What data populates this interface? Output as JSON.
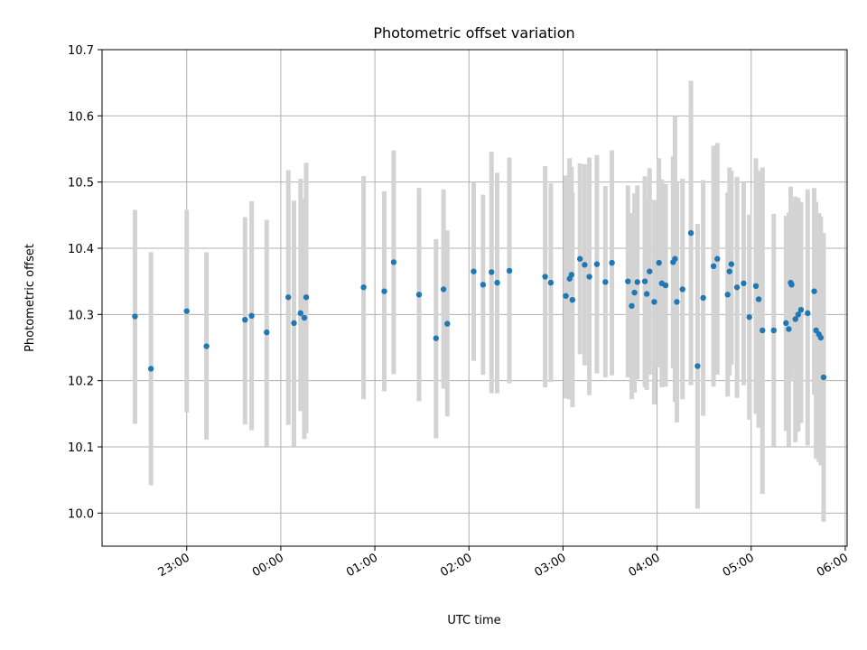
{
  "chart_data": {
    "type": "scatter",
    "title": "Photometric offset variation",
    "xlabel": "UTC time",
    "ylabel": "Photometric offset",
    "x_unit": "hours UTC (values past 24 are the following day)",
    "xlim": [
      22.1,
      30.02
    ],
    "ylim": [
      9.95,
      10.7
    ],
    "x_ticks": [
      {
        "value": 23,
        "label": "23:00"
      },
      {
        "value": 24,
        "label": "00:00"
      },
      {
        "value": 25,
        "label": "01:00"
      },
      {
        "value": 26,
        "label": "02:00"
      },
      {
        "value": 27,
        "label": "03:00"
      },
      {
        "value": 28,
        "label": "04:00"
      },
      {
        "value": 29,
        "label": "05:00"
      },
      {
        "value": 30,
        "label": "06:00"
      }
    ],
    "y_ticks": [
      {
        "value": 10.0,
        "label": "10.0"
      },
      {
        "value": 10.1,
        "label": "10.1"
      },
      {
        "value": 10.2,
        "label": "10.2"
      },
      {
        "value": 10.3,
        "label": "10.3"
      },
      {
        "value": 10.4,
        "label": "10.4"
      },
      {
        "value": 10.5,
        "label": "10.5"
      },
      {
        "value": 10.6,
        "label": "10.6"
      },
      {
        "value": 10.7,
        "label": "10.7"
      }
    ],
    "grid": true,
    "colors": {
      "points": "#1f77b4",
      "error_bars": "#d3d3d3"
    },
    "points": [
      {
        "x": 22.45,
        "y": 10.297,
        "low": 10.135,
        "high": 10.458
      },
      {
        "x": 22.62,
        "y": 10.218,
        "low": 10.042,
        "high": 10.394
      },
      {
        "x": 23.0,
        "y": 10.305,
        "low": 10.152,
        "high": 10.458
      },
      {
        "x": 23.21,
        "y": 10.252,
        "low": 10.111,
        "high": 10.394
      },
      {
        "x": 23.62,
        "y": 10.292,
        "low": 10.134,
        "high": 10.447
      },
      {
        "x": 23.69,
        "y": 10.298,
        "low": 10.125,
        "high": 10.471
      },
      {
        "x": 23.85,
        "y": 10.273,
        "low": 10.101,
        "high": 10.443
      },
      {
        "x": 24.08,
        "y": 10.326,
        "low": 10.133,
        "high": 10.518
      },
      {
        "x": 24.14,
        "y": 10.287,
        "low": 10.101,
        "high": 10.472
      },
      {
        "x": 24.21,
        "y": 10.302,
        "low": 10.154,
        "high": 10.505
      },
      {
        "x": 24.25,
        "y": 10.295,
        "low": 10.112,
        "high": 10.475
      },
      {
        "x": 24.27,
        "y": 10.326,
        "low": 10.121,
        "high": 10.529
      },
      {
        "x": 24.88,
        "y": 10.341,
        "low": 10.172,
        "high": 10.509
      },
      {
        "x": 25.1,
        "y": 10.335,
        "low": 10.184,
        "high": 10.486
      },
      {
        "x": 25.2,
        "y": 10.379,
        "low": 10.21,
        "high": 10.548
      },
      {
        "x": 25.47,
        "y": 10.33,
        "low": 10.169,
        "high": 10.491
      },
      {
        "x": 25.65,
        "y": 10.264,
        "low": 10.113,
        "high": 10.414
      },
      {
        "x": 25.73,
        "y": 10.338,
        "low": 10.188,
        "high": 10.489
      },
      {
        "x": 25.77,
        "y": 10.286,
        "low": 10.146,
        "high": 10.427
      },
      {
        "x": 26.05,
        "y": 10.365,
        "low": 10.23,
        "high": 10.5
      },
      {
        "x": 26.15,
        "y": 10.345,
        "low": 10.209,
        "high": 10.481
      },
      {
        "x": 26.24,
        "y": 10.364,
        "low": 10.181,
        "high": 10.546
      },
      {
        "x": 26.3,
        "y": 10.348,
        "low": 10.181,
        "high": 10.514
      },
      {
        "x": 26.43,
        "y": 10.366,
        "low": 10.196,
        "high": 10.537
      },
      {
        "x": 26.81,
        "y": 10.357,
        "low": 10.19,
        "high": 10.524
      },
      {
        "x": 26.87,
        "y": 10.348,
        "low": 10.198,
        "high": 10.498
      },
      {
        "x": 27.03,
        "y": 10.328,
        "low": 10.173,
        "high": 10.51
      },
      {
        "x": 27.07,
        "y": 10.354,
        "low": 10.172,
        "high": 10.536
      },
      {
        "x": 27.09,
        "y": 10.36,
        "low": 10.198,
        "high": 10.523
      },
      {
        "x": 27.1,
        "y": 10.322,
        "low": 10.16,
        "high": 10.484
      },
      {
        "x": 27.18,
        "y": 10.384,
        "low": 10.24,
        "high": 10.528
      },
      {
        "x": 27.23,
        "y": 10.375,
        "low": 10.223,
        "high": 10.527
      },
      {
        "x": 27.28,
        "y": 10.357,
        "low": 10.178,
        "high": 10.537
      },
      {
        "x": 27.36,
        "y": 10.376,
        "low": 10.211,
        "high": 10.541
      },
      {
        "x": 27.45,
        "y": 10.349,
        "low": 10.205,
        "high": 10.494
      },
      {
        "x": 27.52,
        "y": 10.378,
        "low": 10.208,
        "high": 10.548
      },
      {
        "x": 27.69,
        "y": 10.35,
        "low": 10.205,
        "high": 10.495
      },
      {
        "x": 27.73,
        "y": 10.313,
        "low": 10.172,
        "high": 10.453
      },
      {
        "x": 27.76,
        "y": 10.333,
        "low": 10.182,
        "high": 10.483
      },
      {
        "x": 27.79,
        "y": 10.349,
        "low": 10.202,
        "high": 10.495
      },
      {
        "x": 27.87,
        "y": 10.35,
        "low": 10.19,
        "high": 10.509
      },
      {
        "x": 27.89,
        "y": 10.331,
        "low": 10.186,
        "high": 10.476
      },
      {
        "x": 27.92,
        "y": 10.365,
        "low": 10.209,
        "high": 10.521
      },
      {
        "x": 27.97,
        "y": 10.319,
        "low": 10.164,
        "high": 10.473
      },
      {
        "x": 28.02,
        "y": 10.378,
        "low": 10.22,
        "high": 10.536
      },
      {
        "x": 28.05,
        "y": 10.347,
        "low": 10.19,
        "high": 10.504
      },
      {
        "x": 28.09,
        "y": 10.344,
        "low": 10.191,
        "high": 10.497
      },
      {
        "x": 28.17,
        "y": 10.379,
        "low": 10.219,
        "high": 10.539
      },
      {
        "x": 28.19,
        "y": 10.384,
        "low": 10.168,
        "high": 10.6
      },
      {
        "x": 28.21,
        "y": 10.319,
        "low": 10.137,
        "high": 10.5
      },
      {
        "x": 28.27,
        "y": 10.338,
        "low": 10.172,
        "high": 10.505
      },
      {
        "x": 28.36,
        "y": 10.423,
        "low": 10.193,
        "high": 10.653
      },
      {
        "x": 28.43,
        "y": 10.222,
        "low": 10.007,
        "high": 10.437
      },
      {
        "x": 28.49,
        "y": 10.325,
        "low": 10.147,
        "high": 10.503
      },
      {
        "x": 28.6,
        "y": 10.373,
        "low": 10.191,
        "high": 10.555
      },
      {
        "x": 28.64,
        "y": 10.384,
        "low": 10.209,
        "high": 10.559
      },
      {
        "x": 28.75,
        "y": 10.33,
        "low": 10.176,
        "high": 10.484
      },
      {
        "x": 28.77,
        "y": 10.365,
        "low": 10.208,
        "high": 10.522
      },
      {
        "x": 28.79,
        "y": 10.376,
        "low": 10.224,
        "high": 10.517
      },
      {
        "x": 28.85,
        "y": 10.341,
        "low": 10.174,
        "high": 10.508
      },
      {
        "x": 28.92,
        "y": 10.347,
        "low": 10.193,
        "high": 10.5
      },
      {
        "x": 28.98,
        "y": 10.296,
        "low": 10.141,
        "high": 10.451
      },
      {
        "x": 29.05,
        "y": 10.343,
        "low": 10.15,
        "high": 10.536
      },
      {
        "x": 29.08,
        "y": 10.323,
        "low": 10.129,
        "high": 10.517
      },
      {
        "x": 29.12,
        "y": 10.276,
        "low": 10.029,
        "high": 10.522
      },
      {
        "x": 29.24,
        "y": 10.276,
        "low": 10.101,
        "high": 10.452
      },
      {
        "x": 29.37,
        "y": 10.287,
        "low": 10.124,
        "high": 10.449
      },
      {
        "x": 29.4,
        "y": 10.278,
        "low": 10.101,
        "high": 10.454
      },
      {
        "x": 29.42,
        "y": 10.348,
        "low": 10.202,
        "high": 10.493
      },
      {
        "x": 29.43,
        "y": 10.345,
        "low": 10.222,
        "high": 10.468
      },
      {
        "x": 29.47,
        "y": 10.293,
        "low": 10.107,
        "high": 10.478
      },
      {
        "x": 29.5,
        "y": 10.3,
        "low": 10.123,
        "high": 10.476
      },
      {
        "x": 29.53,
        "y": 10.307,
        "low": 10.136,
        "high": 10.47
      },
      {
        "x": 29.6,
        "y": 10.302,
        "low": 10.102,
        "high": 10.489
      },
      {
        "x": 29.67,
        "y": 10.335,
        "low": 10.179,
        "high": 10.491
      },
      {
        "x": 29.69,
        "y": 10.276,
        "low": 10.082,
        "high": 10.47
      },
      {
        "x": 29.72,
        "y": 10.27,
        "low": 10.077,
        "high": 10.453
      },
      {
        "x": 29.74,
        "y": 10.265,
        "low": 10.072,
        "high": 10.448
      },
      {
        "x": 29.77,
        "y": 10.205,
        "low": 9.987,
        "high": 10.423
      }
    ]
  }
}
